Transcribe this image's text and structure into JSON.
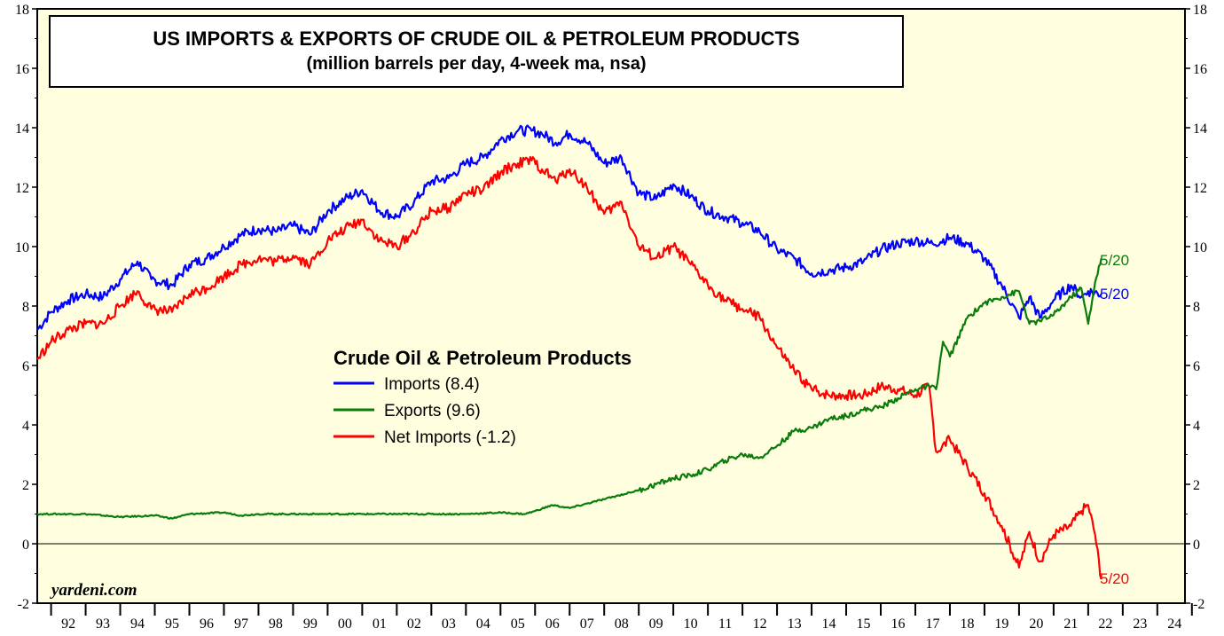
{
  "chart_data": {
    "type": "line",
    "title": "US IMPORTS & EXPORTS OF CRUDE OIL & PETROLEUM PRODUCTS",
    "subtitle": "(million barrels per day, 4-week ma, nsa)",
    "legend_title": "Crude Oil & Petroleum Products",
    "source": "yardeni.com",
    "ylim": [
      -2,
      18
    ],
    "xlim": [
      1991.6,
      2024.8
    ],
    "y_ticks": [
      "-2",
      "0",
      "2",
      "4",
      "6",
      "8",
      "10",
      "12",
      "14",
      "16",
      "18"
    ],
    "x_ticks": [
      "92",
      "93",
      "94",
      "95",
      "96",
      "97",
      "98",
      "99",
      "00",
      "01",
      "02",
      "03",
      "04",
      "05",
      "06",
      "07",
      "08",
      "09",
      "10",
      "11",
      "12",
      "13",
      "14",
      "15",
      "16",
      "17",
      "18",
      "19",
      "20",
      "21",
      "22",
      "23",
      "24"
    ],
    "grid": false,
    "zero_line": true,
    "legend_position": "center-left",
    "background": "#ffffe0",
    "series": [
      {
        "name": "Imports (8.4)",
        "color": "#0000ff",
        "end_label": "5/20",
        "x": [
          1991.6,
          1992.0,
          1992.5,
          1993.0,
          1993.5,
          1994.0,
          1994.5,
          1994.9,
          1995.5,
          1996.0,
          1996.5,
          1997.0,
          1997.5,
          1998.0,
          1998.5,
          1999.0,
          1999.5,
          2000.0,
          2000.5,
          2001.0,
          2001.5,
          2002.0,
          2002.5,
          2003.0,
          2003.5,
          2004.0,
          2004.5,
          2005.0,
          2005.5,
          2005.9,
          2006.2,
          2006.6,
          2007.0,
          2007.5,
          2008.0,
          2008.5,
          2009.0,
          2009.5,
          2010.0,
          2010.5,
          2011.0,
          2011.5,
          2012.0,
          2012.5,
          2013.0,
          2013.5,
          2014.0,
          2014.5,
          2015.0,
          2015.5,
          2016.0,
          2016.5,
          2017.0,
          2017.5,
          2018.0,
          2018.5,
          2019.0,
          2019.5,
          2020.0,
          2020.3,
          2020.6,
          2021.0,
          2021.5,
          2021.8,
          2022.0,
          2022.38
        ],
        "values": [
          7.2,
          7.8,
          8.2,
          8.4,
          8.3,
          8.9,
          9.5,
          8.9,
          8.7,
          9.4,
          9.6,
          10.0,
          10.4,
          10.6,
          10.5,
          10.7,
          10.4,
          11.2,
          11.6,
          11.9,
          11.2,
          11.0,
          11.5,
          12.2,
          12.3,
          12.8,
          13.0,
          13.6,
          13.9,
          13.9,
          13.8,
          13.5,
          13.8,
          13.5,
          12.8,
          13.0,
          11.8,
          11.6,
          12.1,
          11.7,
          11.2,
          11.0,
          10.8,
          10.5,
          9.9,
          9.6,
          9.1,
          9.2,
          9.3,
          9.5,
          9.9,
          10.1,
          10.2,
          10.1,
          10.3,
          10.1,
          9.6,
          8.7,
          7.6,
          8.3,
          7.6,
          8.2,
          8.7,
          8.3,
          8.5,
          8.4
        ]
      },
      {
        "name": "Exports (9.6)",
        "color": "#0a7c0a",
        "end_label": "5/20",
        "x": [
          1991.6,
          1992.0,
          1993.0,
          1994.0,
          1995.0,
          1995.5,
          1996.0,
          1997.0,
          1997.5,
          1998.0,
          1999.0,
          2000.0,
          2001.0,
          2002.0,
          2003.0,
          2004.0,
          2005.0,
          2005.7,
          2006.0,
          2006.5,
          2007.0,
          2008.0,
          2009.0,
          2009.5,
          2010.0,
          2010.5,
          2011.0,
          2011.5,
          2012.0,
          2012.5,
          2013.0,
          2013.5,
          2014.0,
          2014.5,
          2015.0,
          2015.5,
          2016.0,
          2016.5,
          2017.0,
          2017.4,
          2017.6,
          2017.8,
          2018.0,
          2018.5,
          2019.0,
          2019.5,
          2020.0,
          2020.3,
          2020.6,
          2021.0,
          2021.5,
          2021.8,
          2022.0,
          2022.2,
          2022.38
        ],
        "values": [
          1.0,
          1.0,
          1.0,
          0.9,
          0.95,
          0.85,
          1.0,
          1.05,
          0.95,
          1.0,
          1.0,
          1.0,
          1.0,
          1.0,
          1.0,
          1.0,
          1.05,
          1.0,
          1.1,
          1.3,
          1.2,
          1.5,
          1.8,
          2.0,
          2.2,
          2.3,
          2.5,
          2.8,
          3.0,
          2.9,
          3.3,
          3.8,
          3.9,
          4.2,
          4.3,
          4.5,
          4.6,
          4.9,
          5.2,
          5.3,
          5.2,
          6.8,
          6.3,
          7.6,
          8.1,
          8.3,
          8.5,
          7.4,
          7.5,
          7.7,
          8.3,
          8.6,
          7.4,
          8.8,
          9.6
        ]
      },
      {
        "name": "Net Imports (-1.2)",
        "color": "#ff0000",
        "end_label": "5/20",
        "x": [
          1991.6,
          1992.0,
          1992.5,
          1993.0,
          1993.5,
          1994.0,
          1994.5,
          1994.9,
          1995.5,
          1996.0,
          1996.5,
          1997.0,
          1997.5,
          1998.0,
          1998.5,
          1999.0,
          1999.5,
          2000.0,
          2000.5,
          2001.0,
          2001.5,
          2002.0,
          2002.5,
          2003.0,
          2003.5,
          2004.0,
          2004.5,
          2005.0,
          2005.5,
          2005.9,
          2006.2,
          2006.6,
          2007.0,
          2007.5,
          2008.0,
          2008.5,
          2009.0,
          2009.5,
          2010.0,
          2010.5,
          2011.0,
          2011.5,
          2012.0,
          2012.5,
          2013.0,
          2013.5,
          2014.0,
          2014.5,
          2015.0,
          2015.5,
          2016.0,
          2016.5,
          2017.0,
          2017.4,
          2017.6,
          2018.0,
          2018.5,
          2019.0,
          2019.5,
          2020.0,
          2020.3,
          2020.6,
          2021.0,
          2021.5,
          2021.8,
          2022.0,
          2022.2,
          2022.38
        ],
        "values": [
          6.2,
          6.8,
          7.2,
          7.4,
          7.4,
          8.0,
          8.5,
          7.9,
          7.8,
          8.4,
          8.6,
          9.0,
          9.4,
          9.6,
          9.5,
          9.7,
          9.4,
          10.2,
          10.6,
          10.9,
          10.2,
          10.0,
          10.5,
          11.2,
          11.3,
          11.8,
          11.9,
          12.5,
          12.8,
          12.9,
          12.6,
          12.2,
          12.6,
          12.0,
          11.1,
          11.5,
          10.0,
          9.6,
          10.0,
          9.4,
          8.7,
          8.2,
          7.9,
          7.6,
          6.6,
          5.8,
          5.2,
          5.0,
          5.0,
          5.0,
          5.3,
          5.2,
          5.0,
          5.3,
          3.1,
          3.5,
          2.6,
          1.7,
          0.6,
          -0.8,
          0.4,
          -0.6,
          0.3,
          0.6,
          1.1,
          1.3,
          0.3,
          -1.2
        ]
      }
    ]
  }
}
